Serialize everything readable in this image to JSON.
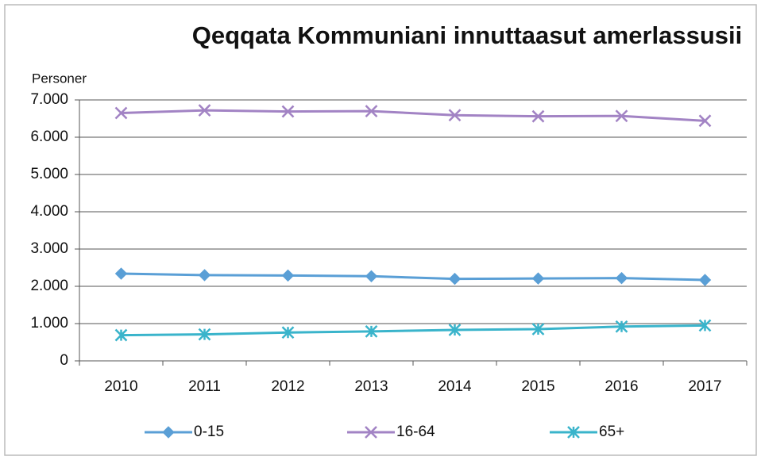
{
  "chart_data": {
    "type": "line",
    "title": "Qeqqata Kommuniani innuttaasut amerlassusii",
    "y_label": "Personer",
    "categories": [
      "2010",
      "2011",
      "2012",
      "2013",
      "2014",
      "2015",
      "2016",
      "2017"
    ],
    "series": [
      {
        "name": "0-15",
        "color": "#5a9fd6",
        "marker": "diamond",
        "values": [
          2340,
          2300,
          2290,
          2270,
          2200,
          2210,
          2220,
          2170
        ]
      },
      {
        "name": "16-64",
        "color": "#a283c4",
        "marker": "x",
        "values": [
          6650,
          6720,
          6690,
          6700,
          6590,
          6560,
          6570,
          6440
        ]
      },
      {
        "name": "65+",
        "color": "#3ab4cb",
        "marker": "star",
        "values": [
          690,
          710,
          760,
          790,
          830,
          850,
          920,
          950
        ]
      }
    ],
    "ylim": [
      0,
      7000
    ],
    "yticks": [
      0,
      {
        "value": 1000,
        "label": "1.000"
      },
      {
        "value": 2000,
        "label": "2.000"
      },
      {
        "value": 3000,
        "label": "3.000"
      },
      {
        "value": 4000,
        "label": "4.000"
      },
      {
        "value": 5000,
        "label": "5.000"
      },
      {
        "value": 6000,
        "label": "6.000"
      },
      {
        "value": 7000,
        "label": "7.000"
      }
    ],
    "grid": true,
    "legend": "bottom"
  }
}
